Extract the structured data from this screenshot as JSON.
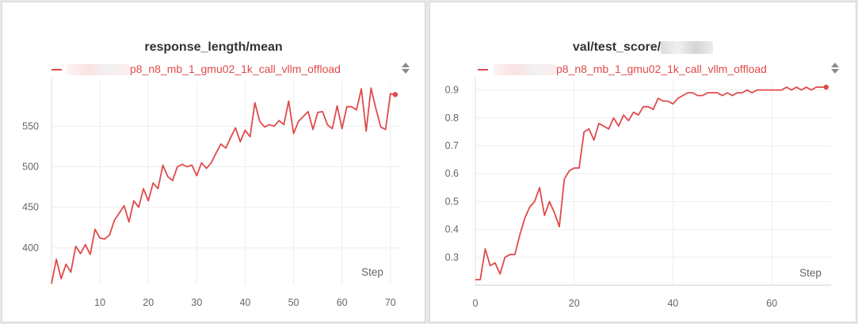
{
  "colors": {
    "series": "#e04a4a",
    "grid": "#eeeeee",
    "text": "#666666"
  },
  "panels": [
    {
      "title": "response_length/mean",
      "legend_label": "p8_n8_mb_1_gmu02_1k_call_vllm_offload"
    },
    {
      "title": "val/test_score/",
      "legend_label": "p8_n8_mb_1_gmu02_1k_call_vllm_offload"
    }
  ],
  "chart_data": [
    {
      "type": "line",
      "title": "response_length/mean",
      "xlabel": "Step",
      "ylabel": "",
      "xlim": [
        0,
        72
      ],
      "ylim": [
        355,
        605
      ],
      "xticks": [
        10,
        20,
        30,
        40,
        50,
        60,
        70
      ],
      "yticks": [
        400,
        450,
        500,
        550
      ],
      "grid": true,
      "legend_placement": "top-left",
      "series": [
        {
          "name": "p8_n8_mb_1_gmu02_1k_call_vllm_offload",
          "color": "#e04a4a",
          "x": [
            0,
            1,
            2,
            3,
            4,
            5,
            6,
            7,
            8,
            9,
            10,
            11,
            12,
            13,
            14,
            15,
            16,
            17,
            18,
            19,
            20,
            21,
            22,
            23,
            24,
            25,
            26,
            27,
            28,
            29,
            30,
            31,
            32,
            33,
            34,
            35,
            36,
            37,
            38,
            39,
            40,
            41,
            42,
            43,
            44,
            45,
            46,
            47,
            48,
            49,
            50,
            51,
            52,
            53,
            54,
            55,
            56,
            57,
            58,
            59,
            60,
            61,
            62,
            63,
            64,
            65,
            66,
            67,
            68,
            69,
            70,
            71
          ],
          "y": [
            356,
            386,
            362,
            380,
            370,
            402,
            393,
            404,
            392,
            423,
            412,
            411,
            416,
            434,
            443,
            452,
            432,
            458,
            450,
            473,
            458,
            480,
            473,
            502,
            488,
            483,
            500,
            503,
            500,
            502,
            489,
            505,
            498,
            505,
            517,
            528,
            523,
            536,
            548,
            531,
            545,
            537,
            579,
            556,
            549,
            552,
            550,
            557,
            552,
            581,
            541,
            556,
            562,
            568,
            546,
            567,
            568,
            552,
            547,
            575,
            547,
            574,
            574,
            570,
            596,
            544,
            597,
            572,
            549,
            546,
            590,
            589
          ],
          "end_marker": true
        }
      ]
    },
    {
      "type": "line",
      "title": "val/test_score/",
      "xlabel": "Step",
      "ylabel": "",
      "xlim": [
        0,
        72
      ],
      "ylim": [
        0.2,
        0.93
      ],
      "xticks": [
        0,
        20,
        40,
        60
      ],
      "yticks": [
        0.3,
        0.4,
        0.5,
        0.6,
        0.7,
        0.8,
        0.9
      ],
      "grid": true,
      "legend_placement": "top-left",
      "series": [
        {
          "name": "p8_n8_mb_1_gmu02_1k_call_vllm_offload",
          "color": "#e04a4a",
          "x": [
            0,
            1,
            2,
            3,
            4,
            5,
            6,
            7,
            8,
            9,
            10,
            11,
            12,
            13,
            14,
            15,
            16,
            17,
            18,
            19,
            20,
            21,
            22,
            23,
            24,
            25,
            26,
            27,
            28,
            29,
            30,
            31,
            32,
            33,
            34,
            35,
            36,
            37,
            38,
            39,
            40,
            41,
            42,
            43,
            44,
            45,
            46,
            47,
            48,
            49,
            50,
            51,
            52,
            53,
            54,
            55,
            56,
            57,
            58,
            59,
            60,
            61,
            62,
            63,
            64,
            65,
            66,
            67,
            68,
            69,
            70,
            71
          ],
          "y": [
            0.22,
            0.22,
            0.33,
            0.27,
            0.28,
            0.24,
            0.3,
            0.31,
            0.31,
            0.38,
            0.44,
            0.48,
            0.5,
            0.55,
            0.45,
            0.5,
            0.46,
            0.41,
            0.58,
            0.61,
            0.62,
            0.62,
            0.75,
            0.76,
            0.72,
            0.78,
            0.77,
            0.76,
            0.8,
            0.77,
            0.81,
            0.79,
            0.82,
            0.81,
            0.84,
            0.84,
            0.83,
            0.87,
            0.86,
            0.86,
            0.85,
            0.87,
            0.88,
            0.89,
            0.89,
            0.88,
            0.88,
            0.89,
            0.89,
            0.89,
            0.88,
            0.89,
            0.88,
            0.89,
            0.89,
            0.9,
            0.89,
            0.9,
            0.9,
            0.9,
            0.9,
            0.9,
            0.9,
            0.91,
            0.9,
            0.91,
            0.9,
            0.91,
            0.9,
            0.91,
            0.91,
            0.91
          ],
          "end_marker": true
        }
      ]
    }
  ]
}
